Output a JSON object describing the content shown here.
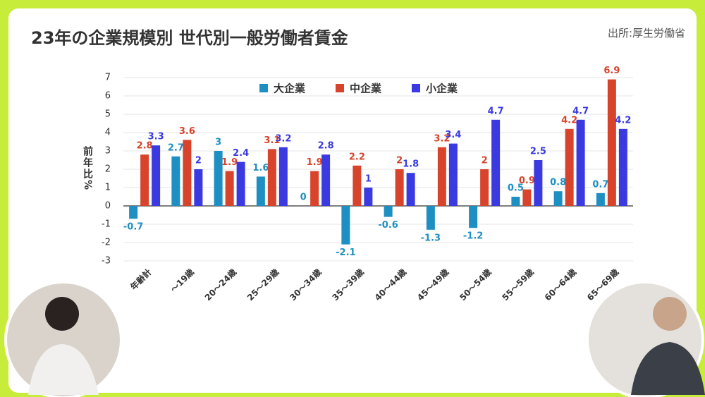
{
  "chart_data": {
    "type": "bar",
    "title": "23年の企業規模別 世代別一般労働者賃金",
    "source": "出所:厚生労働省",
    "y_label": "前年比%",
    "categories": [
      "年齢計",
      "〜19歳",
      "20〜24歳",
      "25〜29歳",
      "30〜34歳",
      "35〜39歳",
      "40〜44歳",
      "45〜49歳",
      "50〜54歳",
      "55〜59歳",
      "60〜64歳",
      "65〜69歳"
    ],
    "series": [
      {
        "name": "大企業",
        "color": "#1e8fc2",
        "values": [
          -0.7,
          2.7,
          3,
          1.6,
          0,
          -2.1,
          -0.6,
          -1.3,
          -1.2,
          0.5,
          0.8,
          0.7
        ]
      },
      {
        "name": "中企業",
        "color": "#d8432b",
        "values": [
          2.8,
          3.6,
          1.9,
          3.1,
          1.9,
          2.2,
          2,
          3.2,
          2,
          0.9,
          4.2,
          6.9
        ]
      },
      {
        "name": "小企業",
        "color": "#3a3ae0",
        "values": [
          3.3,
          2,
          2.4,
          3.2,
          2.8,
          1,
          1.8,
          3.4,
          4.7,
          2.5,
          4.7,
          4.2
        ]
      }
    ],
    "ylim": [
      -3,
      7
    ],
    "yticks": [
      -3,
      -2,
      -1,
      0,
      1,
      2,
      3,
      4,
      5,
      6,
      7
    ],
    "grid": true
  }
}
